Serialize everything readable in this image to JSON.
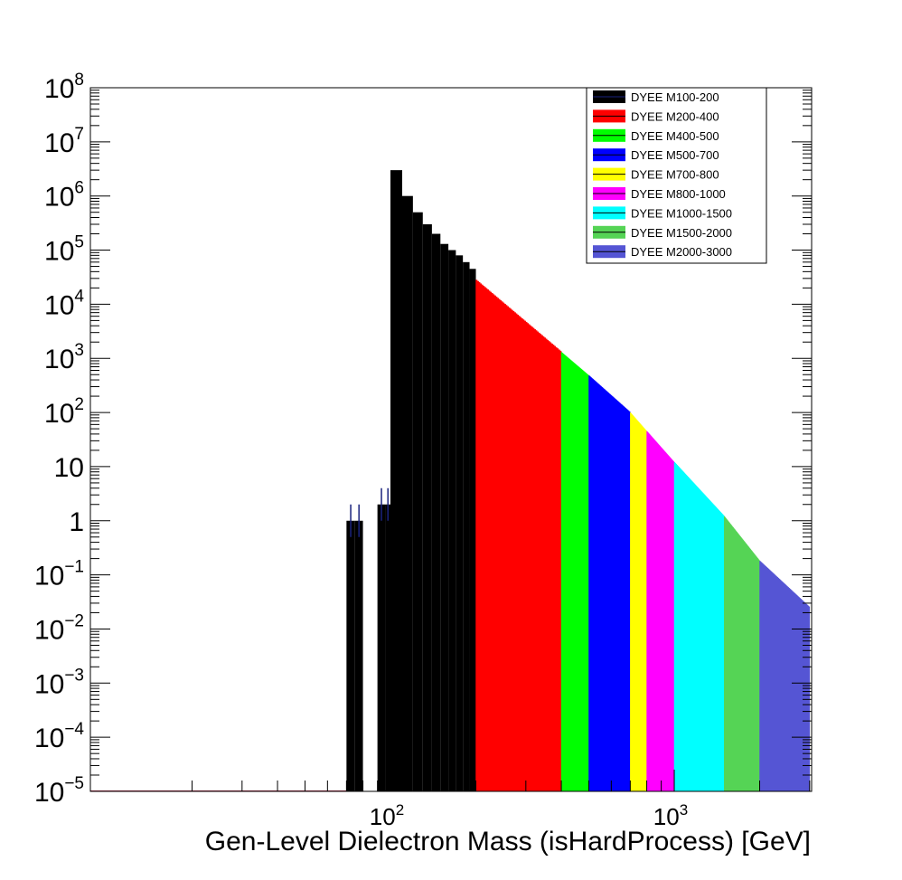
{
  "chart_data": {
    "type": "bar",
    "stacked": true,
    "title": "",
    "xlabel": "Gen-Level Dielectron Mass (isHardProcess) [GeV]",
    "ylabel": "",
    "x_scale": "log",
    "y_scale": "log",
    "xlim": [
      10,
      3000
    ],
    "ylim": [
      1e-05,
      100000000
    ],
    "y_tick_labels": [
      {
        "base": "10",
        "exp": "8",
        "value": 100000000
      },
      {
        "base": "10",
        "exp": "7",
        "value": 10000000
      },
      {
        "base": "10",
        "exp": "6",
        "value": 1000000
      },
      {
        "base": "10",
        "exp": "5",
        "value": 100000
      },
      {
        "base": "10",
        "exp": "4",
        "value": 10000
      },
      {
        "base": "10",
        "exp": "3",
        "value": 1000
      },
      {
        "base": "10",
        "exp": "2",
        "value": 100
      },
      {
        "base": "10",
        "exp": "",
        "value": 10
      },
      {
        "base": "1",
        "exp": "",
        "value": 1
      },
      {
        "base": "10",
        "exp": "−1",
        "value": 0.1
      },
      {
        "base": "10",
        "exp": "−2",
        "value": 0.01
      },
      {
        "base": "10",
        "exp": "−3",
        "value": 0.001
      },
      {
        "base": "10",
        "exp": "−4",
        "value": 0.0001
      },
      {
        "base": "10",
        "exp": "−5",
        "value": 1e-05
      }
    ],
    "x_tick_labels": [
      {
        "base": "10",
        "exp": "2",
        "value": 100
      },
      {
        "base": "10",
        "exp": "3",
        "value": 1000
      }
    ],
    "legend_position": "top-right",
    "series": [
      {
        "name": "DYEE M100-200",
        "color": "#000000",
        "bins": [
          [
            70,
            75,
            1
          ],
          [
            75,
            80,
            1
          ],
          [
            90,
            96,
            2
          ],
          [
            96,
            100,
            2
          ],
          [
            100,
            110,
            3000000
          ],
          [
            110,
            120,
            1000000
          ],
          [
            120,
            130,
            500000
          ],
          [
            130,
            140,
            300000
          ],
          [
            140,
            150,
            200000
          ],
          [
            150,
            160,
            130000
          ],
          [
            160,
            170,
            100000
          ],
          [
            170,
            180,
            80000
          ],
          [
            180,
            190,
            60000
          ],
          [
            190,
            200,
            45000
          ]
        ]
      },
      {
        "name": "DYEE M200-400",
        "color": "#ff0000",
        "bins": [
          [
            200,
            400,
            28000,
            1300
          ]
        ]
      },
      {
        "name": "DYEE M400-500",
        "color": "#00ff00",
        "bins": [
          [
            400,
            500,
            1300,
            480
          ]
        ]
      },
      {
        "name": "DYEE M500-700",
        "color": "#0000ff",
        "bins": [
          [
            500,
            700,
            480,
            100
          ]
        ]
      },
      {
        "name": "DYEE M700-800",
        "color": "#ffff00",
        "bins": [
          [
            700,
            800,
            100,
            45
          ]
        ]
      },
      {
        "name": "DYEE M800-1000",
        "color": "#ff00ff",
        "bins": [
          [
            800,
            1000,
            45,
            12
          ]
        ]
      },
      {
        "name": "DYEE M1000-1500",
        "color": "#00ffff",
        "bins": [
          [
            1000,
            1500,
            12,
            1.2
          ]
        ]
      },
      {
        "name": "DYEE M1500-2000",
        "color": "#55d455",
        "bins": [
          [
            1500,
            2000,
            1.2,
            0.18
          ]
        ]
      },
      {
        "name": "DYEE M2000-3000",
        "color": "#5555d4",
        "bins": [
          [
            2000,
            3000,
            0.18,
            0.025
          ]
        ]
      }
    ]
  }
}
